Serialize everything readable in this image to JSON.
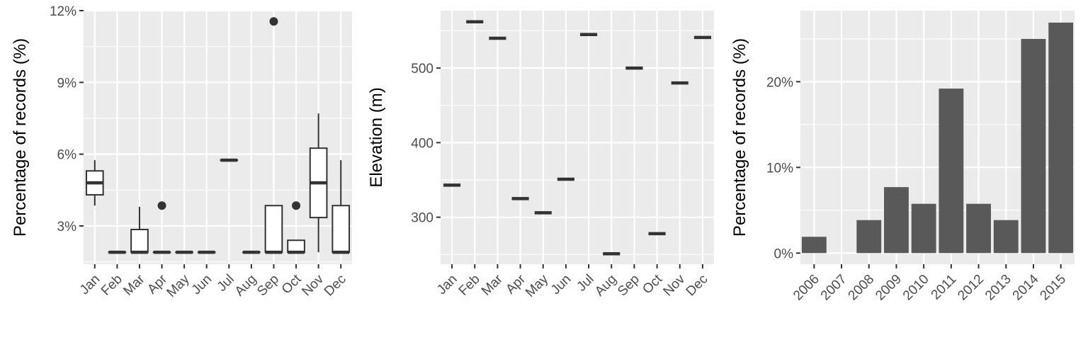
{
  "figure": {
    "colors": {
      "panel_background": "#ebebeb",
      "grid": "#ffffff",
      "box_fill": "#ffffff",
      "box_line": "#333333",
      "bar_fill": "#595959",
      "tick_text": "#4d4d4d"
    }
  },
  "chart_data": [
    {
      "type": "box",
      "ylabel": "Percentage of records (%)",
      "xlabel": "",
      "title": "",
      "ylim": [
        1.4,
        12
      ],
      "y_ticks": [
        3,
        6,
        9,
        12
      ],
      "y_tick_labels": [
        "3%",
        "6%",
        "9%",
        "12%"
      ],
      "grid": true,
      "categories": [
        "Jan",
        "Feb",
        "Mar",
        "Apr",
        "May",
        "Jun",
        "Jul",
        "Aug",
        "Sep",
        "Oct",
        "Nov",
        "Dec"
      ],
      "boxes": [
        {
          "min": 3.85,
          "q1": 4.3,
          "median": 4.8,
          "q3": 5.3,
          "max": 5.75,
          "outliers": []
        },
        {
          "min": 1.9,
          "q1": 1.9,
          "median": 1.9,
          "q3": 1.9,
          "max": 1.9,
          "outliers": []
        },
        {
          "min": 1.9,
          "q1": 1.9,
          "median": 1.9,
          "q3": 2.85,
          "max": 3.8,
          "outliers": []
        },
        {
          "min": 1.9,
          "q1": 1.9,
          "median": 1.9,
          "q3": 1.9,
          "max": 1.9,
          "outliers": [
            3.85
          ]
        },
        {
          "min": 1.9,
          "q1": 1.9,
          "median": 1.9,
          "q3": 1.9,
          "max": 1.9,
          "outliers": []
        },
        {
          "min": 1.9,
          "q1": 1.9,
          "median": 1.9,
          "q3": 1.9,
          "max": 1.9,
          "outliers": []
        },
        {
          "min": 5.75,
          "q1": 5.75,
          "median": 5.75,
          "q3": 5.75,
          "max": 5.75,
          "outliers": []
        },
        {
          "min": 1.9,
          "q1": 1.9,
          "median": 1.9,
          "q3": 1.9,
          "max": 1.9,
          "outliers": []
        },
        {
          "min": 1.9,
          "q1": 1.9,
          "median": 1.9,
          "q3": 3.85,
          "max": 3.85,
          "outliers": [
            11.55
          ]
        },
        {
          "min": 1.9,
          "q1": 1.9,
          "median": 1.9,
          "q3": 2.4,
          "max": 2.4,
          "outliers": [
            3.85
          ]
        },
        {
          "min": 1.9,
          "q1": 3.35,
          "median": 4.8,
          "q3": 6.25,
          "max": 7.7,
          "outliers": []
        },
        {
          "min": 1.9,
          "q1": 1.9,
          "median": 1.9,
          "q3": 3.85,
          "max": 5.75,
          "outliers": []
        }
      ]
    },
    {
      "type": "box",
      "ylabel": "Elevation (m)",
      "xlabel": "",
      "title": "",
      "ylim": [
        237,
        577
      ],
      "y_ticks": [
        300,
        400,
        500
      ],
      "y_tick_labels": [
        "300",
        "400",
        "500"
      ],
      "grid": true,
      "categories": [
        "Jan",
        "Feb",
        "Mar",
        "Apr",
        "May",
        "Jun",
        "Jul",
        "Aug",
        "Sep",
        "Oct",
        "Nov",
        "Dec"
      ],
      "values": [
        343,
        562,
        540,
        325,
        306,
        351,
        545,
        251,
        500,
        278,
        480,
        541
      ]
    },
    {
      "type": "bar",
      "ylabel": "Percentage of records (%)",
      "xlabel": "",
      "title": "",
      "ylim": [
        -1.3,
        28.3
      ],
      "y_ticks": [
        0,
        10,
        20
      ],
      "y_tick_labels": [
        "0%",
        "10%",
        "20%"
      ],
      "grid": true,
      "categories": [
        "2006",
        "2007",
        "2008",
        "2009",
        "2010",
        "2011",
        "2012",
        "2013",
        "2014",
        "2015"
      ],
      "values": [
        1.9,
        0,
        3.85,
        7.7,
        5.75,
        19.2,
        5.75,
        3.85,
        25.0,
        26.9
      ]
    }
  ]
}
